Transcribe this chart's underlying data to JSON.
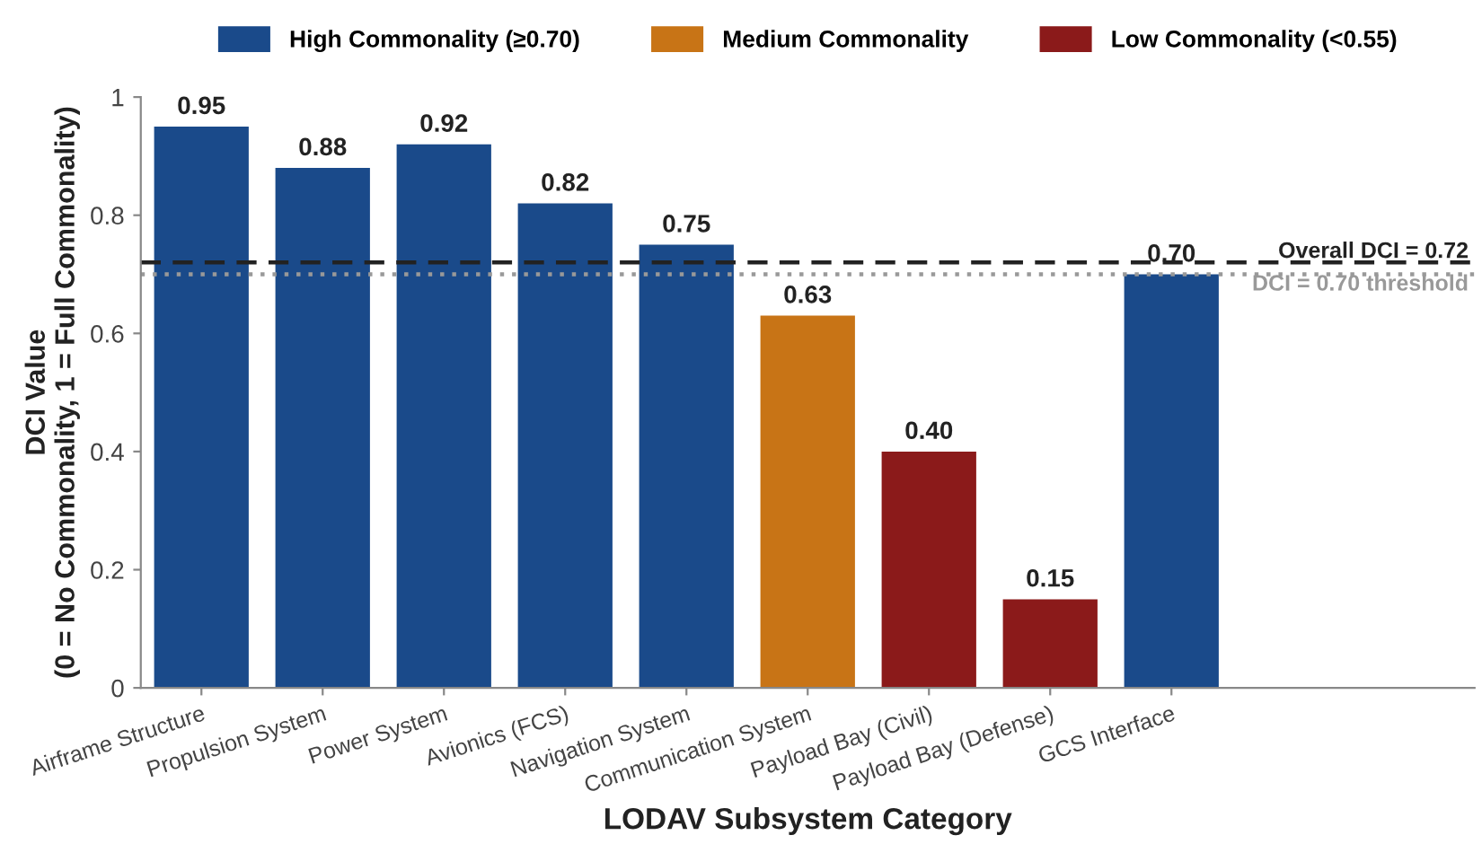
{
  "chart_data": {
    "type": "bar",
    "xlabel": "LODAV Subsystem Category",
    "ylabel": "DCI Value\n(0 = No Commonality, 1 = Full Commonality)",
    "categories": [
      "Airframe Structure",
      "Propulsion System",
      "Power System",
      "Avionics (FCS)",
      "Navigation System",
      "Communication System",
      "Payload Bay (Civil)",
      "Payload Bay (Defense)",
      "GCS Interface"
    ],
    "series": [
      {
        "name": "High Commonality (≥0.70)",
        "color": "#1a4a8a",
        "values": [
          0.95,
          0.88,
          0.92,
          0.82,
          0.75,
          null,
          null,
          null,
          0.7
        ],
        "value_labels": [
          "0.95",
          "0.88",
          "0.92",
          "0.82",
          "0.75",
          null,
          null,
          null,
          "0.70"
        ]
      },
      {
        "name": "Medium Commonality",
        "color": "#c87416",
        "values": [
          null,
          null,
          null,
          null,
          null,
          0.63,
          null,
          null,
          null
        ],
        "value_labels": [
          null,
          null,
          null,
          null,
          null,
          "0.63",
          null,
          null,
          null
        ]
      },
      {
        "name": "Low Commonality (<0.55)",
        "color": "#8b1a1a",
        "values": [
          null,
          null,
          null,
          null,
          null,
          null,
          0.4,
          0.15,
          null
        ],
        "value_labels": [
          null,
          null,
          null,
          null,
          null,
          null,
          "0.40",
          "0.15",
          null
        ]
      }
    ],
    "ylim": [
      0,
      1
    ],
    "yticks": [
      0,
      0.2,
      0.4,
      0.6,
      0.8,
      1
    ],
    "ref_lines": [
      {
        "axis": "y",
        "value": 0.72,
        "label": "Overall DCI = 0.72",
        "color": "#222222",
        "line_style": "dashed"
      },
      {
        "axis": "y",
        "value": 0.7,
        "label": "DCI = 0.70 threshold",
        "color": "#999999",
        "line_style": "dotted"
      }
    ],
    "legend": "top",
    "grid": false
  }
}
